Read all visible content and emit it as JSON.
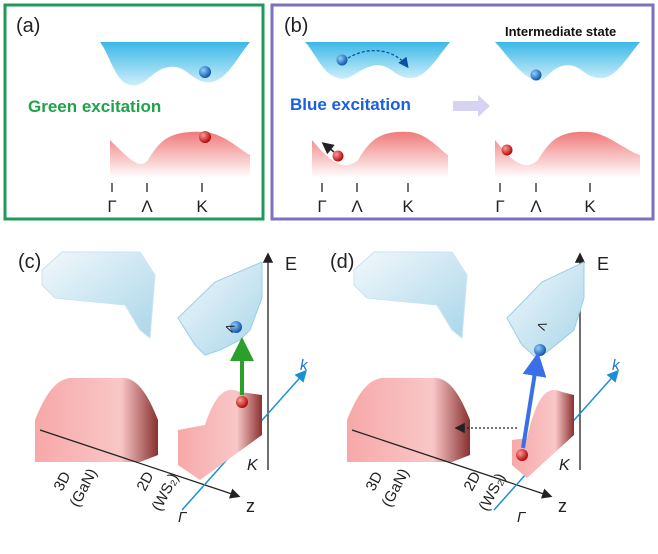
{
  "panels": [
    {
      "label": "(a)",
      "caption": "Green excitation",
      "ticks": [
        "Γ",
        "Λ",
        "K"
      ]
    },
    {
      "label": "(b)",
      "caption": "Blue excitation",
      "note": "Intermediate state",
      "ticks": [
        "Γ",
        "Λ",
        "K"
      ],
      "ticks_right": [
        "Γ",
        "Λ",
        "K"
      ]
    },
    {
      "label": "(c)",
      "axes": {
        "energy": "E",
        "momentum": "k",
        "depth": "z"
      },
      "points": {
        "lambda": "Λ",
        "k": "K",
        "gamma": "Γ"
      },
      "materials": [
        [
          "3D",
          "(GaN)"
        ],
        [
          "2D",
          "(WS₂)"
        ]
      ]
    },
    {
      "label": "(d)",
      "axes": {
        "energy": "E",
        "momentum": "k",
        "depth": "z"
      },
      "points": {
        "lambda": "Λ",
        "k": "K",
        "gamma": "Γ"
      },
      "materials": [
        [
          "3D",
          "(GaN)"
        ],
        [
          "2D",
          "(WS₂)"
        ]
      ]
    }
  ]
}
